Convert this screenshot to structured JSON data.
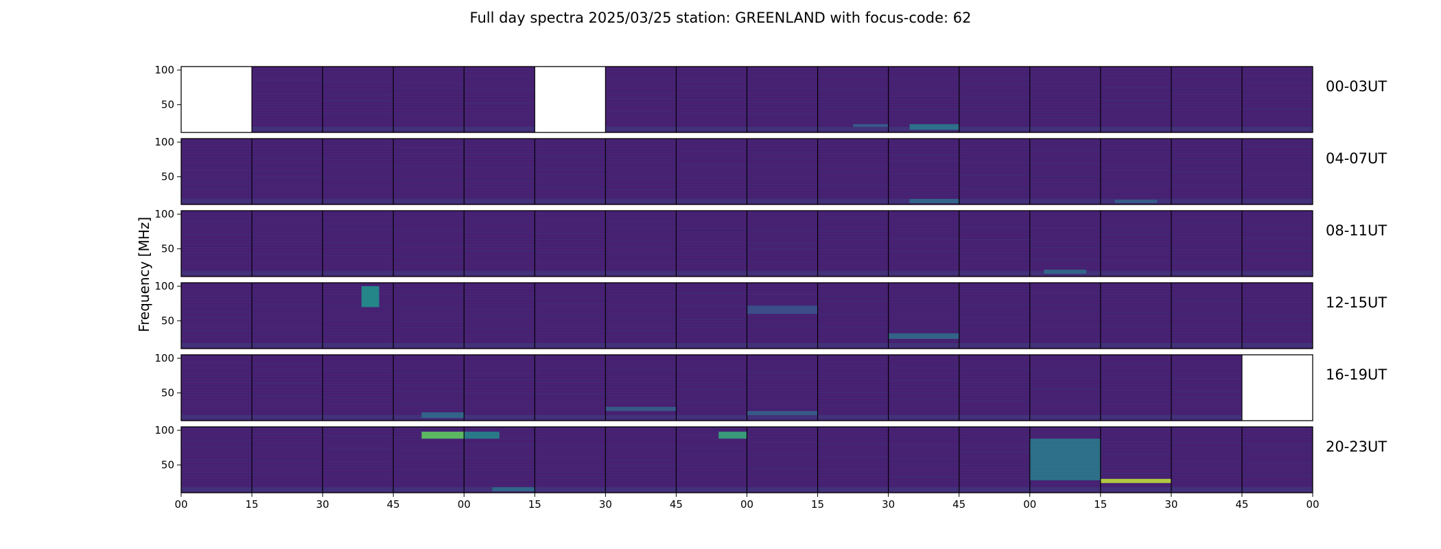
{
  "chart_data": {
    "type": "heatmap",
    "title": "Full day spectra 2025/03/25 station: GREENLAND with focus-code: 62",
    "ylabel": "Frequency [MHz]",
    "xlabel": "",
    "ylim": [
      10,
      105
    ],
    "yticks": [
      "50",
      "100"
    ],
    "xticks": [
      "00",
      "15",
      "30",
      "45",
      "00",
      "15",
      "30",
      "45",
      "00",
      "15",
      "30",
      "45",
      "00",
      "15",
      "30",
      "45",
      "00"
    ],
    "panels_per_row": 16,
    "colormap": [
      "#440154",
      "#3b528b",
      "#21918c",
      "#5ec962",
      "#fde725"
    ],
    "rows": [
      {
        "label": "00-03UT",
        "missing": [
          0,
          5
        ],
        "features": [
          {
            "panel": 10,
            "f_lo": 14,
            "f_hi": 22,
            "t0": 0.3,
            "t1": 1.0,
            "level": 0.4
          },
          {
            "panel": 9,
            "f_lo": 18,
            "f_hi": 22,
            "t0": 0.5,
            "t1": 1.0,
            "level": 0.3
          }
        ]
      },
      {
        "label": "04-07UT",
        "missing": [],
        "features": [
          {
            "panel": 10,
            "f_lo": 12,
            "f_hi": 18,
            "t0": 0.3,
            "t1": 1.0,
            "level": 0.35
          },
          {
            "panel": 13,
            "f_lo": 12,
            "f_hi": 17,
            "t0": 0.2,
            "t1": 0.8,
            "level": 0.3
          }
        ]
      },
      {
        "label": "08-11UT",
        "missing": [],
        "features": [
          {
            "panel": 12,
            "f_lo": 14,
            "f_hi": 20,
            "t0": 0.2,
            "t1": 0.8,
            "level": 0.35
          }
        ]
      },
      {
        "label": "12-15UT",
        "missing": [],
        "features": [
          {
            "panel": 2,
            "f_lo": 70,
            "f_hi": 100,
            "t0": 0.55,
            "t1": 0.8,
            "level": 0.5
          },
          {
            "panel": 10,
            "f_lo": 24,
            "f_hi": 32,
            "t0": 0.0,
            "t1": 1.0,
            "level": 0.35
          },
          {
            "panel": 8,
            "f_lo": 60,
            "f_hi": 72,
            "t0": 0.0,
            "t1": 1.0,
            "level": 0.25
          }
        ]
      },
      {
        "label": "16-19UT",
        "missing": [
          15
        ],
        "features": [
          {
            "panel": 6,
            "f_lo": 24,
            "f_hi": 30,
            "t0": 0.0,
            "t1": 1.0,
            "level": 0.3
          },
          {
            "panel": 8,
            "f_lo": 18,
            "f_hi": 24,
            "t0": 0.0,
            "t1": 1.0,
            "level": 0.3
          },
          {
            "panel": 3,
            "f_lo": 14,
            "f_hi": 22,
            "t0": 0.4,
            "t1": 1.0,
            "level": 0.35
          }
        ]
      },
      {
        "label": "20-23UT",
        "missing": [],
        "features": [
          {
            "panel": 3,
            "f_lo": 88,
            "f_hi": 98,
            "t0": 0.4,
            "t1": 1.0,
            "level": 0.75
          },
          {
            "panel": 4,
            "f_lo": 88,
            "f_hi": 98,
            "t0": 0.0,
            "t1": 0.5,
            "level": 0.45
          },
          {
            "panel": 7,
            "f_lo": 88,
            "f_hi": 98,
            "t0": 0.6,
            "t1": 1.0,
            "level": 0.6
          },
          {
            "panel": 12,
            "f_lo": 28,
            "f_hi": 88,
            "t0": 0.0,
            "t1": 1.0,
            "level": 0.4
          },
          {
            "panel": 13,
            "f_lo": 24,
            "f_hi": 30,
            "t0": 0.0,
            "t1": 1.0,
            "level": 0.9
          },
          {
            "panel": 4,
            "f_lo": 12,
            "f_hi": 18,
            "t0": 0.4,
            "t1": 1.0,
            "level": 0.35
          }
        ]
      }
    ]
  }
}
